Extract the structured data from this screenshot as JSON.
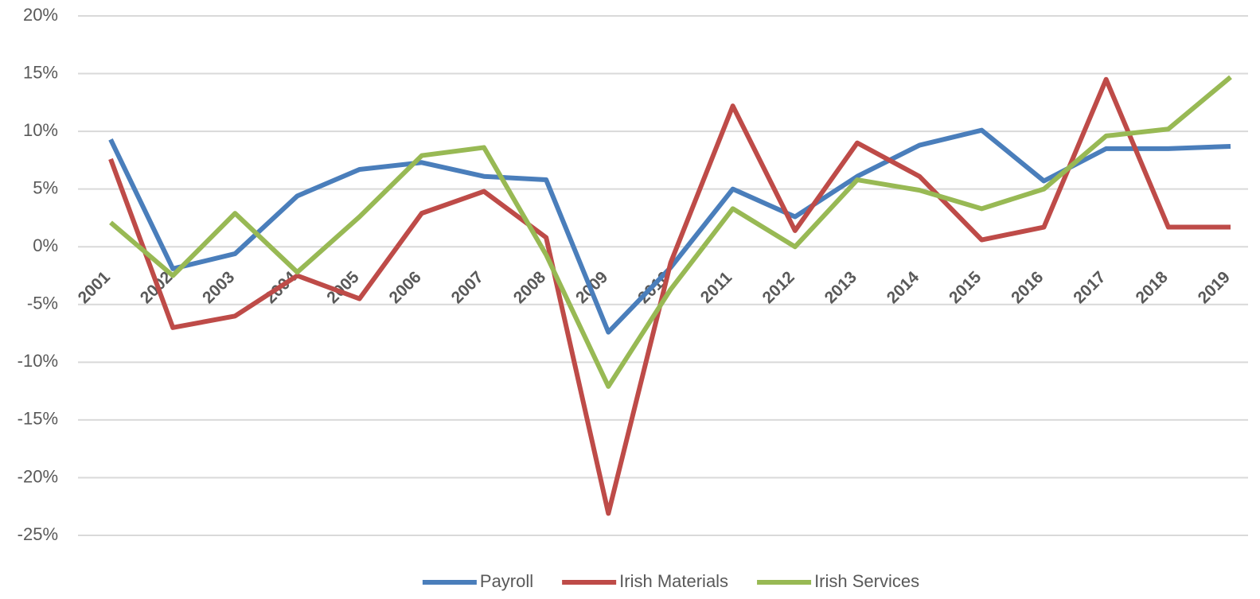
{
  "chart_data": {
    "type": "line",
    "categories": [
      "2001",
      "2002",
      "2003",
      "2004",
      "2005",
      "2006",
      "2007",
      "2008",
      "2009",
      "2010",
      "2011",
      "2012",
      "2013",
      "2014",
      "2015",
      "2016",
      "2017",
      "2018",
      "2019"
    ],
    "series": [
      {
        "name": "Payroll",
        "color": "#4a7ebb",
        "values": [
          9.3,
          -1.9,
          -0.6,
          4.4,
          6.7,
          7.3,
          6.1,
          5.8,
          -7.4,
          -1.8,
          5.0,
          2.6,
          6.1,
          8.8,
          10.1,
          5.7,
          8.5,
          8.5,
          8.7
        ]
      },
      {
        "name": "Irish Materials",
        "color": "#be4b48",
        "values": [
          7.6,
          -7.0,
          -6.0,
          -2.5,
          -4.5,
          2.9,
          4.8,
          0.8,
          -23.1,
          -1.4,
          12.2,
          1.4,
          9.0,
          6.1,
          0.6,
          1.7,
          14.5,
          1.7,
          1.7
        ]
      },
      {
        "name": "Irish Services",
        "color": "#98b954",
        "values": [
          2.1,
          -2.5,
          2.9,
          -2.2,
          2.6,
          7.9,
          8.6,
          -0.7,
          -12.1,
          -3.7,
          3.3,
          0.0,
          5.8,
          4.9,
          3.3,
          5.0,
          9.6,
          10.2,
          14.7
        ]
      }
    ],
    "ylim": [
      -25,
      20
    ],
    "yticks": [
      {
        "value": -25,
        "label": "-25%"
      },
      {
        "value": -20,
        "label": "-20%"
      },
      {
        "value": -15,
        "label": "-15%"
      },
      {
        "value": -10,
        "label": "-10%"
      },
      {
        "value": -5,
        "label": "-5%"
      },
      {
        "value": 0,
        "label": "0%"
      },
      {
        "value": 5,
        "label": "5%"
      },
      {
        "value": 10,
        "label": "10%"
      },
      {
        "value": 15,
        "label": "15%"
      },
      {
        "value": 20,
        "label": "20%"
      }
    ],
    "grid": true,
    "legend": "bottom"
  }
}
